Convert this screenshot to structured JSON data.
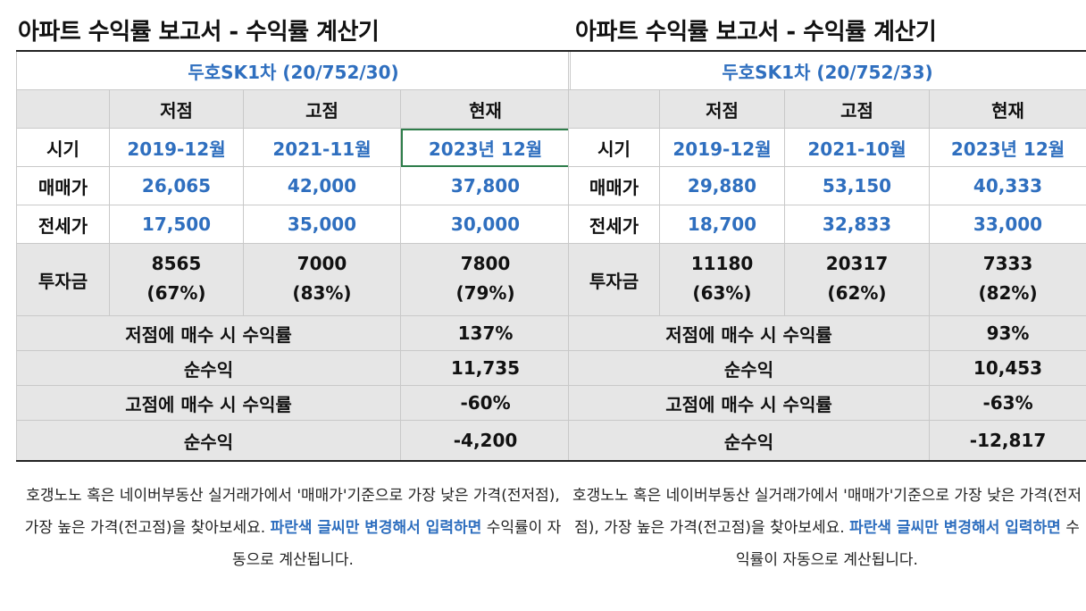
{
  "left": {
    "title": "아파트 수익률 보고서 - 수익률 계산기",
    "apartment": "두호SK1차 (20/752/30)",
    "col_headers": [
      "저점",
      "고점",
      "현재"
    ],
    "rows": {
      "period": {
        "label": "시기",
        "values": [
          "2019-12월",
          "2021-11월",
          "2023년 12월"
        ]
      },
      "sale_price": {
        "label": "매매가",
        "values": [
          "26,065",
          "42,000",
          "37,800"
        ]
      },
      "jeonse_price": {
        "label": "전세가",
        "values": [
          "17,500",
          "35,000",
          "30,000"
        ]
      },
      "investment": {
        "label": "투자금",
        "amounts": [
          "8565",
          "7000",
          "7800"
        ],
        "ratios": [
          "(67%)",
          "(83%)",
          "(79%)"
        ]
      }
    },
    "summary": [
      {
        "label": "저점에 매수 시 수익률",
        "value": "137%"
      },
      {
        "label": "순수익",
        "value": "11,735"
      },
      {
        "label": "고점에 매수 시 수익률",
        "value": "-60%"
      },
      {
        "label": "순수익",
        "value": "-4,200"
      }
    ],
    "note": {
      "text_before": "호갱노노 혹은 네이버부동산 실거래가에서 '매매가'기준으로 가장 낮은 가격(전저점), 가장 높은 가격(전고점)을 찾아보세요. ",
      "highlight": "파란색 글씨만 변경해서 입력하면",
      "text_after": " 수익률이 자동으로 계산됩니다."
    }
  },
  "right": {
    "title": "아파트 수익률 보고서 - 수익률 계산기",
    "apartment": "두호SK1차 (20/752/33)",
    "col_headers": [
      "저점",
      "고점",
      "현재"
    ],
    "rows": {
      "period": {
        "label": "시기",
        "values": [
          "2019-12월",
          "2021-10월",
          "2023년 12월"
        ]
      },
      "sale_price": {
        "label": "매매가",
        "values": [
          "29,880",
          "53,150",
          "40,333"
        ]
      },
      "jeonse_price": {
        "label": "전세가",
        "values": [
          "18,700",
          "32,833",
          "33,000"
        ]
      },
      "investment": {
        "label": "투자금",
        "amounts": [
          "11180",
          "20317",
          "7333"
        ],
        "ratios": [
          "(63%)",
          "(62%)",
          "(82%)"
        ]
      }
    },
    "summary": [
      {
        "label": "저점에 매수 시 수익률",
        "value": "93%"
      },
      {
        "label": "순수익",
        "value": "10,453"
      },
      {
        "label": "고점에 매수 시 수익률",
        "value": "-63%"
      },
      {
        "label": "순수익",
        "value": "-12,817"
      }
    ],
    "note": {
      "text_before": "호갱노노 혹은 네이버부동산 실거래가에서 '매매가'기준으로 가장 낮은 가격(전저점), 가장 높은 가격(전고점)을 찾아보세요. ",
      "highlight": "파란색 글씨만 변경해서 입력하면",
      "text_after": " 수익률이 자동으로 계산됩니다."
    }
  },
  "colors": {
    "accent_blue": "#2f6fbf",
    "header_gray": "#e6e6e6",
    "selected_green": "#2e7d4a"
  }
}
